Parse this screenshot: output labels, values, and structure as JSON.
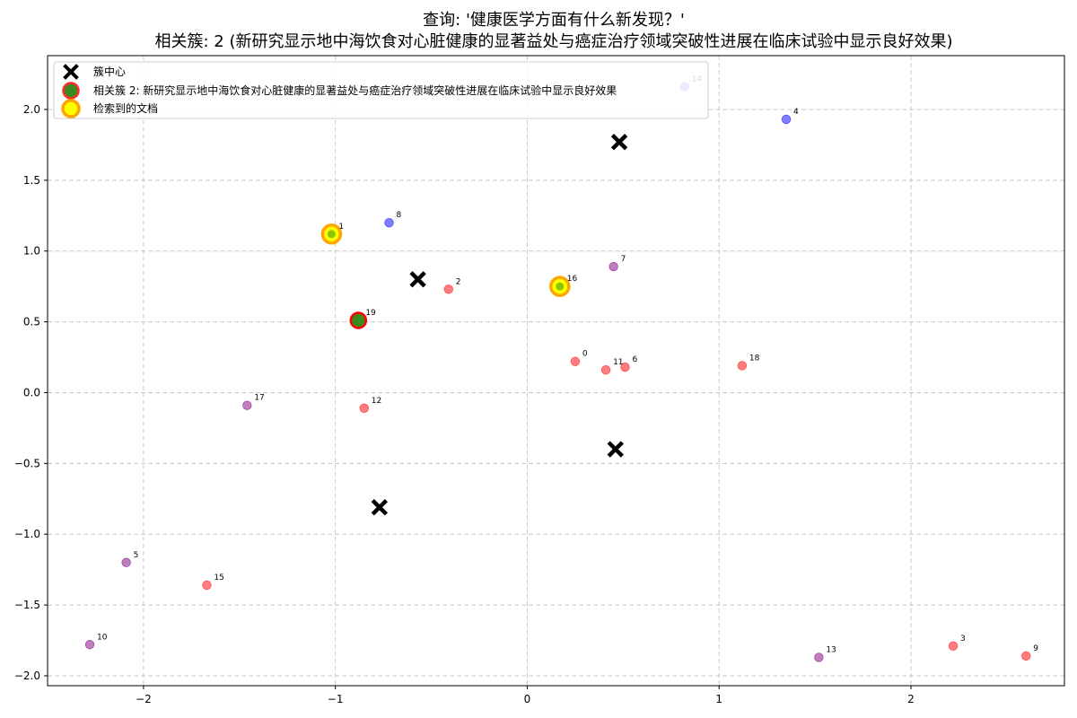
{
  "chart_data": {
    "type": "scatter",
    "title_line1": "查询: '健康医学方面有什么新发现？'",
    "title_line2": "相关簇: 2 (新研究显示地中海饮食对心脏健康的显著益处与癌症治疗领域突破性进展在临床试验中显示良好效果)",
    "xlabel": "",
    "ylabel": "",
    "xlim": [
      -2.5,
      2.8
    ],
    "ylim": [
      -2.07,
      2.38
    ],
    "x_ticks": [
      -2,
      -1,
      0,
      1,
      2
    ],
    "x_tick_labels": [
      "−2",
      "−1",
      "0",
      "1",
      "2"
    ],
    "y_ticks": [
      -2.0,
      -1.5,
      -1.0,
      -0.5,
      0.0,
      0.5,
      1.0,
      1.5,
      2.0
    ],
    "y_tick_labels": [
      "−2.0",
      "−1.5",
      "−1.0",
      "−0.5",
      "0.0",
      "0.5",
      "1.0",
      "1.5",
      "2.0"
    ],
    "grid": true,
    "legend_position": "top-left",
    "legend": [
      {
        "label": "簇中心",
        "marker": "x"
      },
      {
        "label": "相关簇 2: 新研究显示地中海饮食对心脏健康的显著益处与癌症治疗领域突破性进展在临床试验中显示良好效果",
        "marker": "relevant"
      },
      {
        "label": "检索到的文档",
        "marker": "retrieved"
      }
    ],
    "colors": {
      "cluster_0": "#ff0000",
      "cluster_1": "#0000ff",
      "cluster_2": "#008000",
      "cluster_3": "#800080",
      "center": "#000000",
      "retrieved_fill": "#ffff00",
      "retrieved_edge": "#ffa500",
      "relevant_edge": "#ff0000",
      "grid": "#c8c8c8"
    },
    "centers": [
      {
        "x": 0.48,
        "y": 1.77
      },
      {
        "x": -0.57,
        "y": 0.8
      },
      {
        "x": 0.46,
        "y": -0.4
      },
      {
        "x": -0.77,
        "y": -0.81
      }
    ],
    "points": [
      {
        "id": "0",
        "x": 0.25,
        "y": 0.22,
        "cluster": 0
      },
      {
        "id": "1",
        "x": -1.02,
        "y": 1.12,
        "cluster": 2,
        "retrieved": true
      },
      {
        "id": "2",
        "x": -0.41,
        "y": 0.73,
        "cluster": 0
      },
      {
        "id": "3",
        "x": 2.22,
        "y": -1.79,
        "cluster": 0
      },
      {
        "id": "4",
        "x": 1.35,
        "y": 1.93,
        "cluster": 1
      },
      {
        "id": "5",
        "x": -2.09,
        "y": -1.2,
        "cluster": 3
      },
      {
        "id": "6",
        "x": 0.51,
        "y": 0.18,
        "cluster": 0
      },
      {
        "id": "7",
        "x": 0.45,
        "y": 0.89,
        "cluster": 3
      },
      {
        "id": "8",
        "x": -0.72,
        "y": 1.2,
        "cluster": 1
      },
      {
        "id": "9",
        "x": 2.6,
        "y": -1.86,
        "cluster": 0
      },
      {
        "id": "10",
        "x": -2.28,
        "y": -1.78,
        "cluster": 3
      },
      {
        "id": "11",
        "x": 0.41,
        "y": 0.16,
        "cluster": 0
      },
      {
        "id": "12",
        "x": -0.85,
        "y": -0.11,
        "cluster": 0
      },
      {
        "id": "13",
        "x": 1.52,
        "y": -1.87,
        "cluster": 3
      },
      {
        "id": "14",
        "x": 0.82,
        "y": 2.16,
        "cluster": 1
      },
      {
        "id": "15",
        "x": -1.67,
        "y": -1.36,
        "cluster": 0
      },
      {
        "id": "16",
        "x": 0.17,
        "y": 0.75,
        "cluster": 2,
        "retrieved": true
      },
      {
        "id": "17",
        "x": -1.46,
        "y": -0.09,
        "cluster": 3
      },
      {
        "id": "18",
        "x": 1.12,
        "y": 0.19,
        "cluster": 0
      },
      {
        "id": "19",
        "x": -0.88,
        "y": 0.51,
        "cluster": 2,
        "relevant": true
      }
    ]
  }
}
